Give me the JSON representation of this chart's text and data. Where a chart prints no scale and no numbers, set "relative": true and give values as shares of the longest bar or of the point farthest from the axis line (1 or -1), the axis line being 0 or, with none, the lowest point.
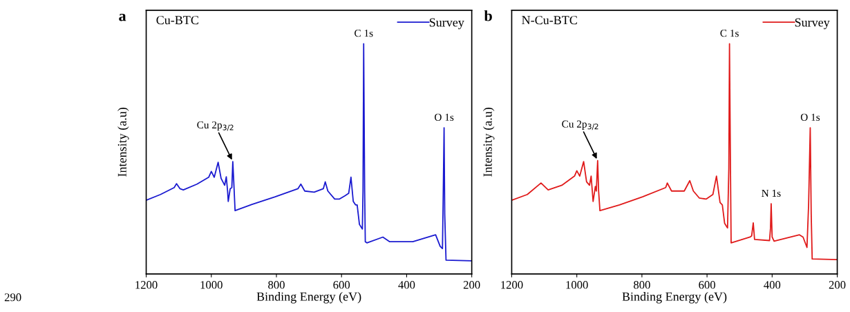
{
  "chart_data": [
    {
      "type": "line",
      "title": "a",
      "subtitle": "Cu-BTC",
      "xlabel": "Binding Energy (eV)",
      "ylabel": "Intensity (a.u)",
      "relative": true,
      "xlim": [
        1200,
        200
      ],
      "xticks": [
        1200,
        1000,
        800,
        600,
        400,
        200
      ],
      "legend": "top right",
      "grid": false,
      "series": [
        {
          "name": "Survey",
          "color": "#1a1ad0",
          "x": [
            1200,
            1156,
            1114,
            1107,
            1096,
            1086,
            1044,
            1008,
            1000,
            991,
            979,
            970,
            959,
            954,
            950,
            948,
            942,
            937,
            934,
            931,
            927,
            917,
            875,
            804,
            734,
            725,
            713,
            684,
            656,
            650,
            642,
            621,
            607,
            589,
            578,
            571,
            564,
            557,
            552,
            545,
            536,
            534,
            532,
            529,
            527,
            522,
            473,
            452,
            381,
            311,
            297,
            290,
            288,
            285,
            283,
            279,
            200
          ],
          "values": [
            0.32,
            0.345,
            0.375,
            0.392,
            0.37,
            0.365,
            0.39,
            0.42,
            0.445,
            0.42,
            0.485,
            0.415,
            0.385,
            0.422,
            0.36,
            0.315,
            0.37,
            0.375,
            0.488,
            0.4,
            0.275,
            0.28,
            0.302,
            0.335,
            0.37,
            0.39,
            0.36,
            0.355,
            0.37,
            0.4,
            0.36,
            0.325,
            0.325,
            0.34,
            0.35,
            0.42,
            0.315,
            0.3,
            0.3,
            0.215,
            0.195,
            0.36,
            1.0,
            0.36,
            0.14,
            0.135,
            0.16,
            0.14,
            0.14,
            0.17,
            0.12,
            0.11,
            0.3,
            0.635,
            0.26,
            0.06,
            0.057
          ]
        }
      ],
      "annotations": [
        {
          "text": "C 1s",
          "x": 532,
          "y": 1.0
        },
        {
          "text": "O 1s",
          "x": 285,
          "y": 0.635
        },
        {
          "text": "Cu 2p$_{3/2}$",
          "x": 934,
          "y": 0.488
        },
        "290"
      ]
    },
    {
      "type": "line",
      "title": "b",
      "subtitle": "N-Cu-BTC",
      "xlabel": "Binding Energy (eV)",
      "ylabel": "Intensity (a.u)",
      "relative": true,
      "xlim": [
        1200,
        200
      ],
      "xticks": [
        1200,
        1000,
        800,
        600,
        400,
        200
      ],
      "legend": "top right",
      "grid": false,
      "series": [
        {
          "name": "Survey",
          "color": "#e01a1a",
          "x": [
            1200,
            1152,
            1110,
            1088,
            1046,
            1007,
            1000,
            991,
            979,
            970,
            961,
            956,
            950,
            943,
            940,
            936,
            933,
            929,
            869,
            798,
            727,
            722,
            709,
            670,
            653,
            642,
            624,
            603,
            582,
            571,
            560,
            553,
            546,
            537,
            533,
            531,
            528,
            526,
            514,
            468,
            463,
            458,
            454,
            408,
            405,
            403,
            400,
            394,
            316,
            305,
            293,
            288,
            283,
            280,
            277,
            200
          ],
          "values": [
            0.32,
            0.345,
            0.395,
            0.365,
            0.385,
            0.425,
            0.448,
            0.425,
            0.488,
            0.4,
            0.385,
            0.425,
            0.315,
            0.38,
            0.36,
            0.492,
            0.36,
            0.275,
            0.3,
            0.335,
            0.375,
            0.395,
            0.36,
            0.36,
            0.405,
            0.36,
            0.33,
            0.325,
            0.345,
            0.425,
            0.31,
            0.3,
            0.22,
            0.2,
            0.46,
            1.0,
            0.46,
            0.135,
            0.14,
            0.16,
            0.165,
            0.222,
            0.15,
            0.145,
            0.2,
            0.305,
            0.16,
            0.142,
            0.17,
            0.16,
            0.115,
            0.3,
            0.635,
            0.26,
            0.065,
            0.062
          ]
        }
      ],
      "annotations": [
        {
          "text": "C 1s",
          "x": 531,
          "y": 1.0
        },
        {
          "text": "O 1s",
          "x": 283,
          "y": 0.635
        },
        {
          "text": "Cu 2p$_{3/2}$",
          "x": 936,
          "y": 0.492
        },
        {
          "text": "N 1s",
          "x": 403,
          "y": 0.305
        }
      ]
    }
  ]
}
